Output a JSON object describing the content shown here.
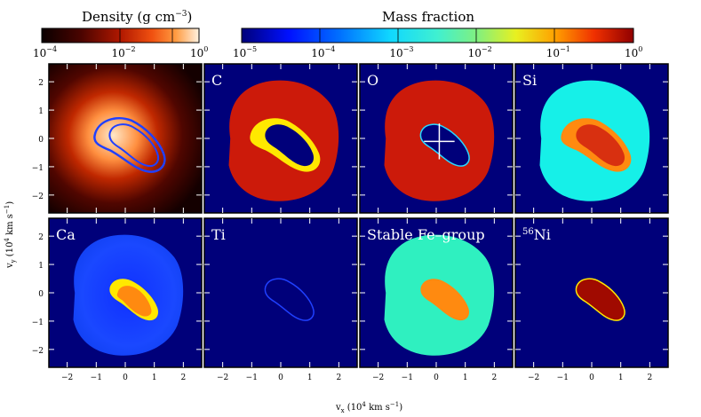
{
  "density_bar": {
    "title_main": "Density",
    "title_unit": "(g cm",
    "title_exp": "−3",
    "title_close": ")",
    "ticks": [
      {
        "base": "10",
        "exp": "−4"
      },
      {
        "base": "10",
        "exp": "−2"
      },
      {
        "base": "10",
        "exp": "0"
      }
    ]
  },
  "mass_bar": {
    "title": "Mass fraction",
    "ticks": [
      {
        "base": "10",
        "exp": "−5"
      },
      {
        "base": "10",
        "exp": "−4"
      },
      {
        "base": "10",
        "exp": "−3"
      },
      {
        "base": "10",
        "exp": "−2"
      },
      {
        "base": "10",
        "exp": "−1"
      },
      {
        "base": "10",
        "exp": "0"
      }
    ]
  },
  "panels": [
    {
      "label": "",
      "sup": "",
      "kind": "density"
    },
    {
      "label": "C",
      "sup": "",
      "kind": "carbon"
    },
    {
      "label": "O",
      "sup": "",
      "kind": "oxygen"
    },
    {
      "label": "Si",
      "sup": "",
      "kind": "silicon"
    },
    {
      "label": "Ca",
      "sup": "",
      "kind": "calcium"
    },
    {
      "label": "Ti",
      "sup": "",
      "kind": "titanium"
    },
    {
      "label": "Stable Fe–group",
      "sup": "",
      "kind": "fegroup"
    },
    {
      "label": "Ni",
      "sup": "56",
      "kind": "nickel"
    }
  ],
  "axes": {
    "x_ticks": [
      "−2",
      "−1",
      "0",
      "1",
      "2"
    ],
    "y_ticks": [
      "2",
      "1",
      "0",
      "−1",
      "−2"
    ],
    "xlabel": "v",
    "xlabel_sub": "x",
    "xlabel_rest": " (10",
    "xlabel_exp": "4",
    "xlabel_unit": " km s",
    "xlabel_unit_exp": "−1",
    "xlabel_close": ")",
    "ylabel": "v",
    "ylabel_sub": "y",
    "ylabel_rest": " (10",
    "ylabel_exp": "4",
    "ylabel_unit": " km s",
    "ylabel_unit_exp": "−1",
    "ylabel_close": ")"
  },
  "colors": {
    "navy": "#00007a",
    "red": "#cc1a0a",
    "cyan": "#16f0e8",
    "aqua": "#2ff0c0",
    "blue": "#1a3aff",
    "orange": "#ff8a10",
    "yellow": "#ffe800"
  }
}
